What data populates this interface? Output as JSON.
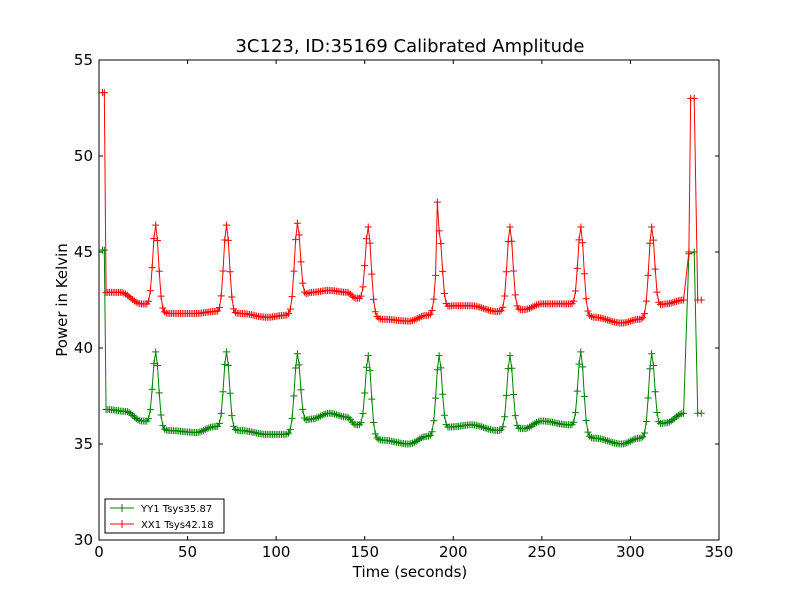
{
  "chart_data": {
    "type": "line",
    "title": "3C123, ID:35169 Calibrated Amplitude",
    "xlabel": "Time (seconds)",
    "ylabel": "Power in Kelvin",
    "xlim": [
      0,
      350
    ],
    "ylim": [
      30,
      55
    ],
    "xticks": [
      0,
      50,
      100,
      150,
      200,
      250,
      300,
      350
    ],
    "yticks": [
      30,
      35,
      40,
      45,
      50,
      55
    ],
    "grid": false,
    "legend_position": "lower-left",
    "marker": "+",
    "colors": {
      "YY1": "#008000",
      "XX1": "#ff0000"
    },
    "series": [
      {
        "name": "YY1 Tsys35.87",
        "color": "#008000",
        "endpoints": {
          "start_x": [
            2,
            3
          ],
          "start_y": [
            45.1,
            45.1
          ],
          "jump_x": 4,
          "end_x": [
            333,
            336,
            338,
            340
          ],
          "end_y": [
            44.9,
            45.0,
            36.6,
            36.6
          ]
        },
        "baseline": [
          [
            4,
            36.8
          ],
          [
            15,
            36.7
          ],
          [
            24,
            36.2
          ],
          [
            40,
            35.7
          ],
          [
            55,
            35.6
          ],
          [
            65,
            35.9
          ],
          [
            80,
            35.7
          ],
          [
            95,
            35.5
          ],
          [
            105,
            35.5
          ],
          [
            120,
            36.3
          ],
          [
            130,
            36.6
          ],
          [
            140,
            36.4
          ],
          [
            145,
            36.0
          ],
          [
            160,
            35.2
          ],
          [
            175,
            35.0
          ],
          [
            185,
            35.4
          ],
          [
            200,
            35.9
          ],
          [
            210,
            36.0
          ],
          [
            225,
            35.7
          ],
          [
            240,
            35.8
          ],
          [
            250,
            36.2
          ],
          [
            265,
            36.0
          ],
          [
            280,
            35.3
          ],
          [
            295,
            35.0
          ],
          [
            305,
            35.3
          ],
          [
            320,
            36.1
          ],
          [
            330,
            36.6
          ]
        ],
        "peaks": [
          [
            32,
            39.8
          ],
          [
            72,
            39.8
          ],
          [
            112,
            39.7
          ],
          [
            152,
            39.6
          ],
          [
            192,
            39.6
          ],
          [
            232,
            39.6
          ],
          [
            272,
            39.8
          ],
          [
            312,
            39.7
          ]
        ]
      },
      {
        "name": "XX1 Tsys42.18",
        "color": "#ff0000",
        "endpoints": {
          "start_x": [
            2,
            3
          ],
          "start_y": [
            53.3,
            53.3
          ],
          "jump_x": 4,
          "end_x": [
            333,
            334,
            336,
            338,
            340
          ],
          "end_y": [
            45.0,
            53.0,
            53.0,
            42.5,
            42.5
          ]
        },
        "baseline": [
          [
            4,
            42.9
          ],
          [
            12,
            42.9
          ],
          [
            24,
            42.3
          ],
          [
            40,
            41.8
          ],
          [
            55,
            41.8
          ],
          [
            65,
            41.9
          ],
          [
            80,
            41.8
          ],
          [
            95,
            41.6
          ],
          [
            105,
            41.7
          ],
          [
            120,
            42.9
          ],
          [
            130,
            43.0
          ],
          [
            140,
            42.9
          ],
          [
            145,
            42.6
          ],
          [
            160,
            41.5
          ],
          [
            175,
            41.4
          ],
          [
            185,
            41.7
          ],
          [
            200,
            42.2
          ],
          [
            210,
            42.2
          ],
          [
            225,
            41.9
          ],
          [
            240,
            42.0
          ],
          [
            250,
            42.3
          ],
          [
            265,
            42.3
          ],
          [
            280,
            41.6
          ],
          [
            295,
            41.3
          ],
          [
            305,
            41.5
          ],
          [
            320,
            42.3
          ],
          [
            330,
            42.5
          ]
        ],
        "peaks": [
          [
            32,
            46.4
          ],
          [
            72,
            46.4
          ],
          [
            112,
            46.5
          ],
          [
            152,
            46.3
          ],
          [
            192,
            46.1
          ],
          [
            232,
            46.3
          ],
          [
            272,
            46.3
          ],
          [
            312,
            46.3
          ]
        ],
        "spikes": [
          [
            191,
            47.6
          ]
        ]
      }
    ]
  }
}
